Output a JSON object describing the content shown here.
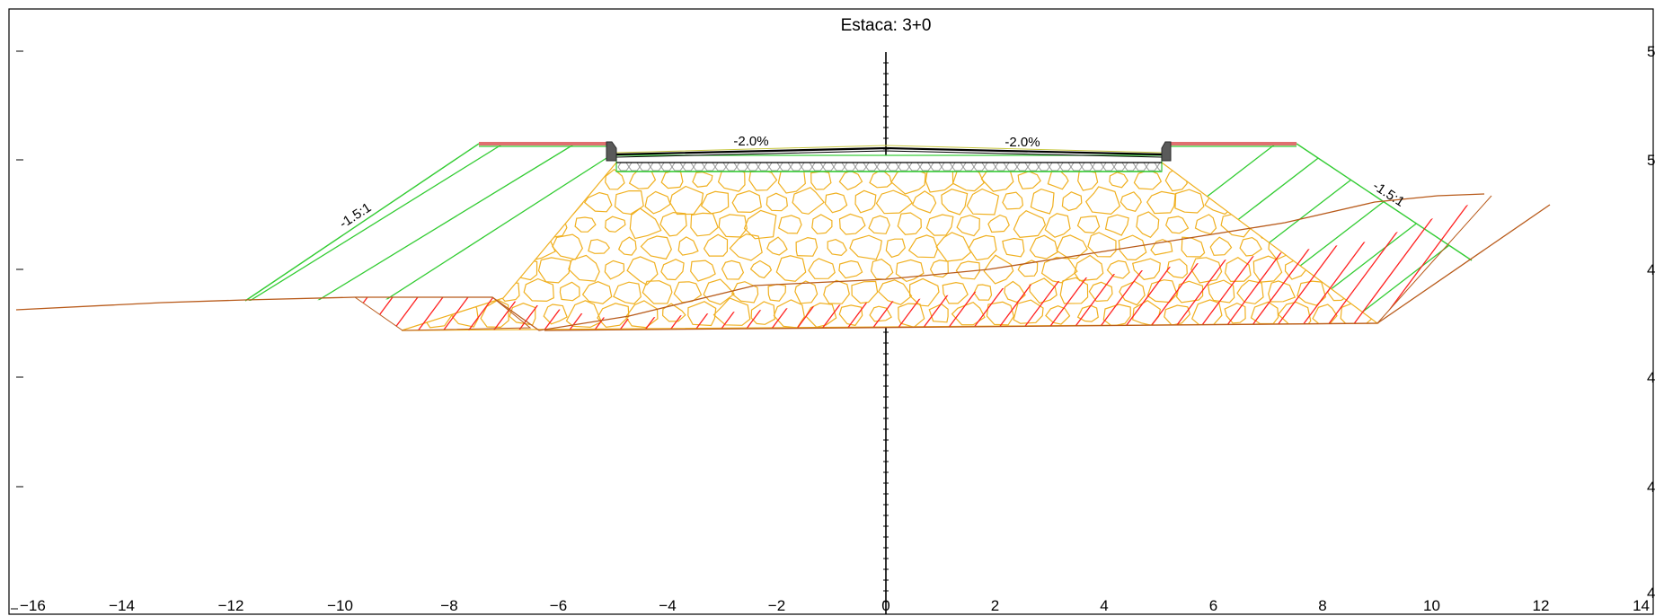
{
  "title": "Estaca: 3+0",
  "x_ticks": [
    "-16",
    "-14",
    "-12",
    "-10",
    "-8",
    "-6",
    "-4",
    "-2",
    "0",
    "2",
    "4",
    "6",
    "8",
    "10",
    "12",
    "14"
  ],
  "y_ticks_right": [
    "5",
    "5",
    "4",
    "4",
    "4",
    "4"
  ],
  "labels": {
    "grade_left": "-2.0%",
    "grade_right": "-2.0%",
    "slope_left": "-1.5:1",
    "slope_right": "-1.5:1"
  },
  "colors": {
    "frame": "#000000",
    "fill_slope": "#33cc33",
    "cut_hatch": "#ff2020",
    "rockfill": "#f0b020",
    "terrain": "#b85a1a",
    "shoulder": "#e07070",
    "pavement": "#000000",
    "base_layer": "#9a9a9a",
    "curb": "#555555"
  }
}
